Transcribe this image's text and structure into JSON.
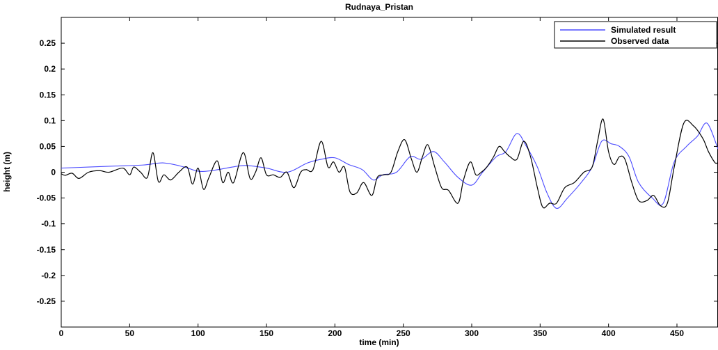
{
  "chart_data": {
    "type": "line",
    "title": "Rudnaya_Pristan",
    "xlabel": "time (min)",
    "ylabel": "height (m)",
    "xlim": [
      0,
      480
    ],
    "ylim": [
      -0.3,
      0.3
    ],
    "x_ticks": [
      0,
      50,
      100,
      150,
      200,
      250,
      300,
      350,
      400,
      450
    ],
    "y_ticks": [
      -0.25,
      -0.2,
      -0.15,
      -0.1,
      -0.05,
      0,
      0.05,
      0.1,
      0.15,
      0.2,
      0.25
    ],
    "y_tick_labels": [
      "-0.25",
      "-0.2",
      "-0.15",
      "-0.1",
      "-0.05",
      "0",
      "0.05",
      "0.1",
      "0.15",
      "0.2",
      "0.25"
    ],
    "grid": false,
    "legend_position": "top-right",
    "series": [
      {
        "name": "Simulated result",
        "color": "#4a4aff",
        "x": [
          0,
          20,
          40,
          60,
          75,
          90,
          100,
          110,
          125,
          135,
          150,
          165,
          180,
          190,
          200,
          210,
          220,
          228,
          235,
          245,
          255,
          263,
          272,
          280,
          290,
          300,
          308,
          318,
          325,
          333,
          340,
          348,
          355,
          362,
          370,
          380,
          388,
          395,
          402,
          408,
          415,
          422,
          432,
          440,
          448,
          457,
          465,
          472,
          480
        ],
        "y": [
          0.008,
          0.01,
          0.012,
          0.014,
          0.018,
          0.01,
          0.002,
          0.003,
          0.01,
          0.013,
          0.008,
          0.0,
          0.018,
          0.025,
          0.028,
          0.015,
          0.005,
          -0.015,
          -0.005,
          0.0,
          0.03,
          0.025,
          0.04,
          0.02,
          -0.01,
          -0.025,
          0.0,
          0.03,
          0.04,
          0.075,
          0.05,
          0.01,
          -0.04,
          -0.07,
          -0.05,
          -0.02,
          0.01,
          0.06,
          0.055,
          0.05,
          0.03,
          -0.02,
          -0.05,
          -0.06,
          0.02,
          0.05,
          0.07,
          0.095,
          0.045
        ]
      },
      {
        "name": "Observed data",
        "color": "#000000",
        "x": [
          0,
          3,
          8,
          13,
          20,
          28,
          35,
          45,
          50,
          53,
          58,
          63,
          67,
          71,
          75,
          80,
          86,
          92,
          96,
          100,
          104,
          108,
          114,
          118,
          122,
          126,
          133,
          138,
          142,
          146,
          150,
          155,
          160,
          165,
          170,
          175,
          179,
          184,
          190,
          195,
          199,
          203,
          207,
          211,
          216,
          221,
          227,
          231,
          236,
          241,
          246,
          251,
          256,
          260,
          264,
          268,
          273,
          278,
          283,
          290,
          294,
          299,
          303,
          307,
          311,
          316,
          320,
          324,
          328,
          333,
          338,
          343,
          348,
          352,
          357,
          362,
          368,
          375,
          382,
          388,
          392,
          396,
          400,
          404,
          408,
          412,
          417,
          422,
          428,
          433,
          438,
          443,
          448,
          455,
          462,
          469,
          473,
          478,
          480
        ],
        "y": [
          -0.003,
          -0.006,
          -0.002,
          -0.012,
          0.0,
          0.003,
          0.0,
          0.008,
          -0.005,
          0.01,
          0.0,
          -0.01,
          0.038,
          -0.018,
          -0.005,
          -0.015,
          0.0,
          0.01,
          -0.023,
          0.008,
          -0.033,
          -0.01,
          0.022,
          -0.02,
          0.0,
          -0.02,
          0.038,
          -0.012,
          0.0,
          0.028,
          -0.005,
          -0.005,
          -0.01,
          0.0,
          -0.03,
          0.0,
          0.005,
          0.005,
          0.06,
          0.01,
          0.02,
          0.0,
          0.01,
          -0.038,
          -0.04,
          -0.02,
          -0.045,
          -0.01,
          -0.005,
          0.0,
          0.04,
          0.063,
          0.025,
          0.0,
          0.03,
          0.053,
          0.01,
          -0.03,
          -0.035,
          -0.06,
          -0.015,
          0.02,
          -0.005,
          0.0,
          0.01,
          0.03,
          0.05,
          0.04,
          0.03,
          0.025,
          0.06,
          0.03,
          -0.03,
          -0.068,
          -0.06,
          -0.06,
          -0.03,
          -0.02,
          0.0,
          0.01,
          0.06,
          0.103,
          0.04,
          0.015,
          0.03,
          0.025,
          -0.02,
          -0.055,
          -0.055,
          -0.045,
          -0.065,
          -0.06,
          0.01,
          0.095,
          0.09,
          0.065,
          0.04,
          0.018,
          0.02
        ]
      }
    ]
  }
}
